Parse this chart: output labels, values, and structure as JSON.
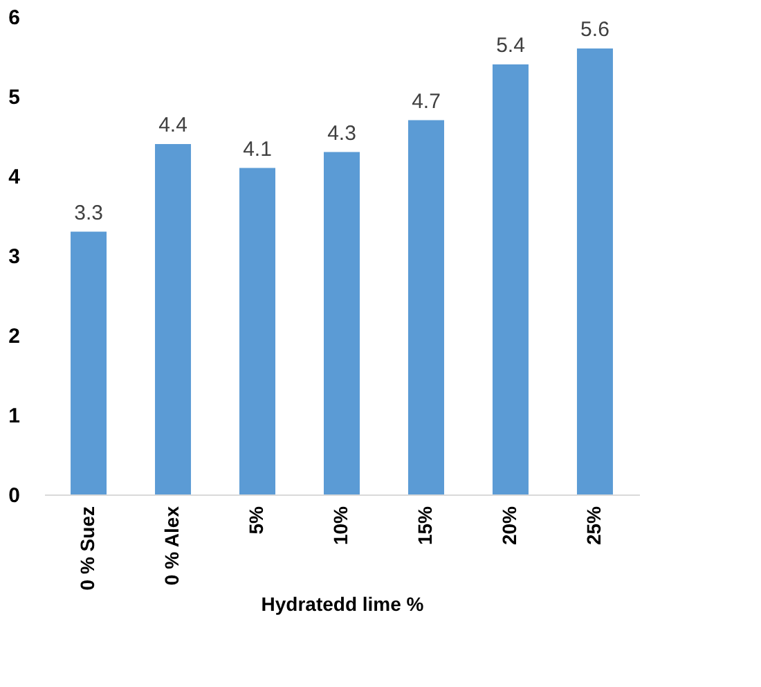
{
  "chart_data": {
    "type": "bar",
    "xlabel": "Hydratedd lime %",
    "categories": [
      "0 % Suez",
      "0 % Alex",
      "5%",
      "10%",
      "15%",
      "20%",
      "25%"
    ],
    "values": [
      3.3,
      4.4,
      4.1,
      4.3,
      4.7,
      5.4,
      5.6
    ],
    "color": "#5b9bd5",
    "ylim": [
      0,
      6
    ],
    "yticks": [
      0,
      1,
      2,
      3,
      4,
      5,
      6
    ],
    "grid": false,
    "data_labels": true
  }
}
